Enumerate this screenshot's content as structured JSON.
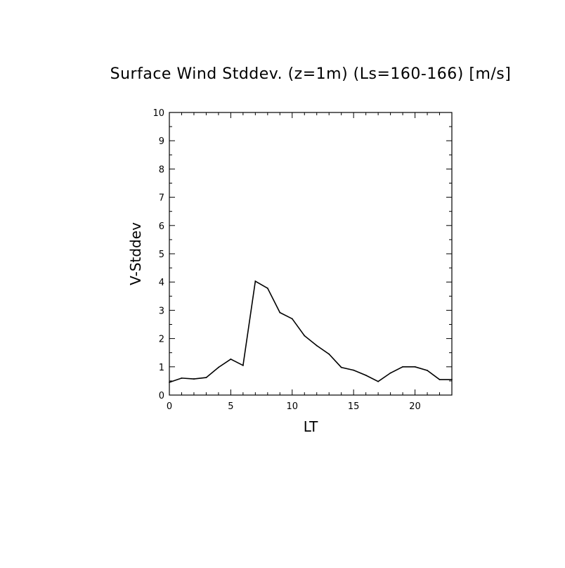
{
  "chart_data": {
    "type": "line",
    "title": "Surface Wind Stddev. (z=1m) (Ls=160-166) [m/s]",
    "xlabel": "LT",
    "ylabel": "V-Stddev",
    "xlim": [
      0,
      23
    ],
    "ylim": [
      0,
      10
    ],
    "x_ticks": [
      0,
      5,
      10,
      15,
      20
    ],
    "x_tick_labels": [
      "0",
      "5",
      "10",
      "15",
      "20"
    ],
    "x_minor_step": 1,
    "y_ticks": [
      0,
      1,
      2,
      3,
      4,
      5,
      6,
      7,
      8,
      9,
      10
    ],
    "y_tick_labels": [
      "0",
      "1",
      "2",
      "3",
      "4",
      "5",
      "6",
      "7",
      "8",
      "9",
      "10"
    ],
    "y_minor_step": 0.5,
    "grid": false,
    "line_color": "#000000",
    "series": [
      {
        "x": [
          0,
          1,
          2,
          3,
          4,
          5,
          6,
          7,
          8,
          9,
          10,
          11,
          12,
          13,
          14,
          15,
          16,
          17,
          18,
          19,
          20,
          21,
          22,
          23
        ],
        "values": [
          0.45,
          0.6,
          0.57,
          0.62,
          0.98,
          1.27,
          1.05,
          4.03,
          3.78,
          2.92,
          2.7,
          2.1,
          1.75,
          1.45,
          0.98,
          0.88,
          0.7,
          0.48,
          0.78,
          1.0,
          1.0,
          0.87,
          0.55,
          0.55
        ]
      }
    ]
  }
}
